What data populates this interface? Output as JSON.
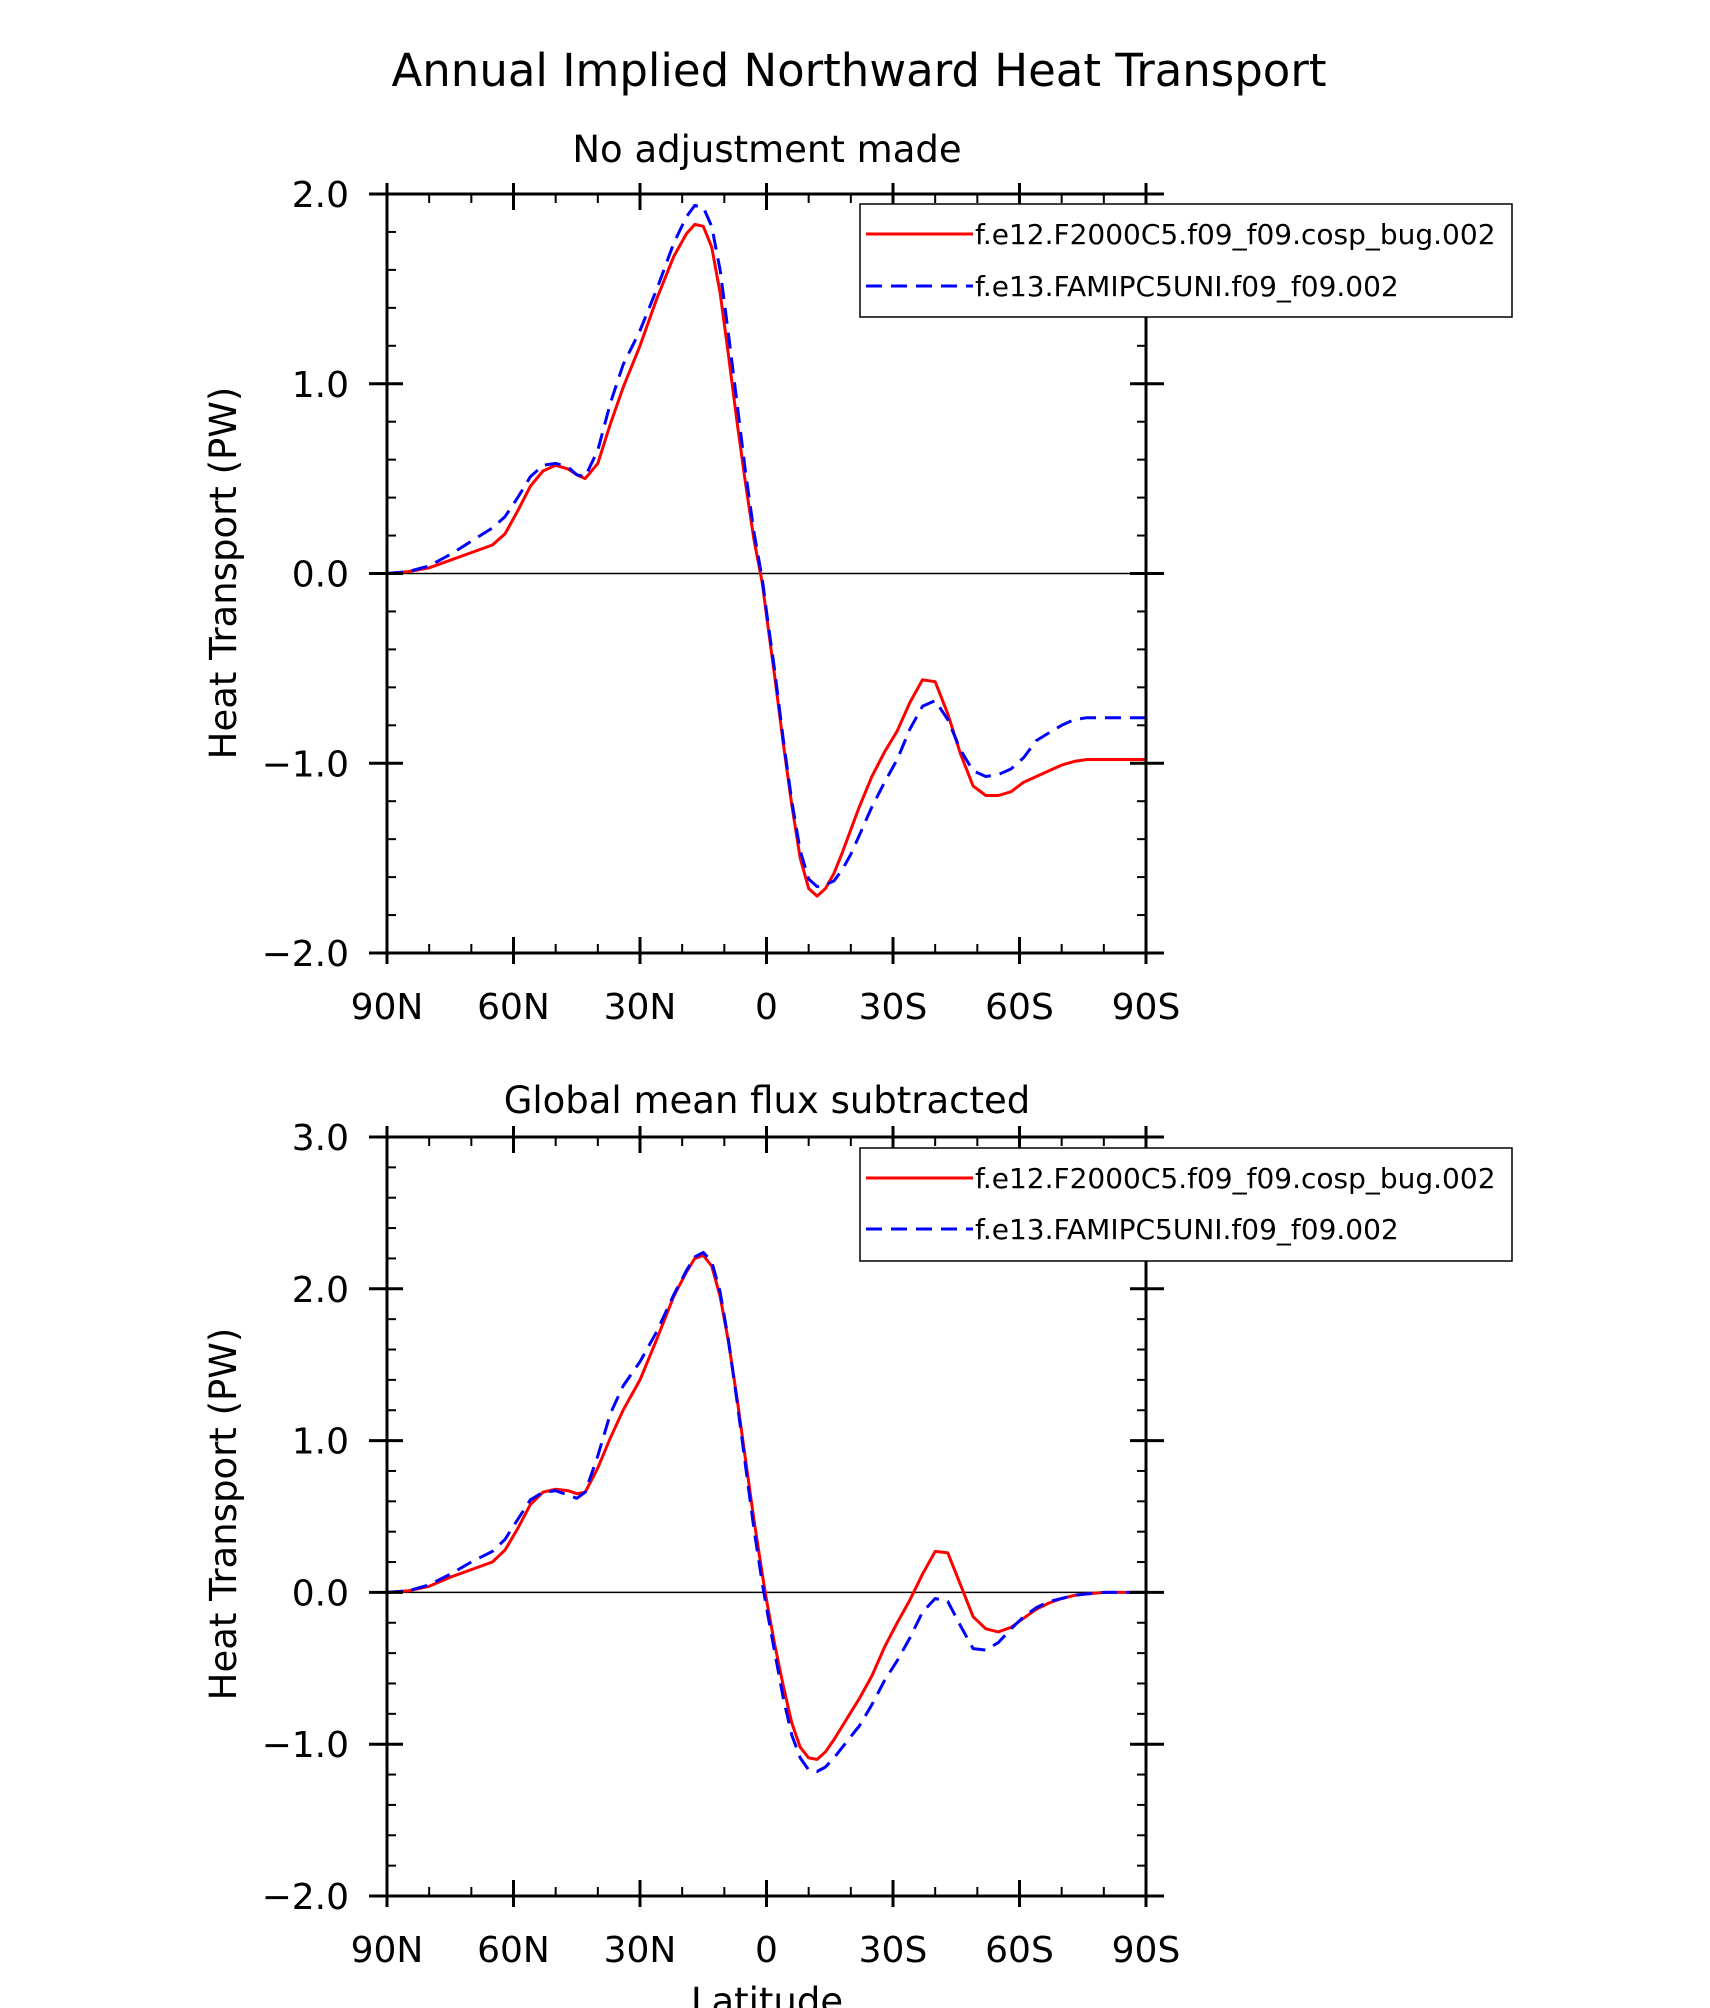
{
  "figure": {
    "title": "Annual Implied Northward Heat Transport",
    "xlabel": "Latitude"
  },
  "legend_entries": [
    "f.e12.F2000C5.f09_f09.cosp_bug.002",
    "f.e13.FAMIPC5UNI.f09_f09.002"
  ],
  "colors": {
    "series1": "#ff0000",
    "series2": "#0000ff",
    "axis": "#000000"
  },
  "chart_data": [
    {
      "type": "line",
      "title": "No adjustment made",
      "xlabel": "",
      "ylabel": "Heat Transport (PW)",
      "x_ticks": [
        {
          "v": 90,
          "label": "90N"
        },
        {
          "v": 60,
          "label": "60N"
        },
        {
          "v": 30,
          "label": "30N"
        },
        {
          "v": 0,
          "label": "0"
        },
        {
          "v": -30,
          "label": "30S"
        },
        {
          "v": -60,
          "label": "60S"
        },
        {
          "v": -90,
          "label": "90S"
        }
      ],
      "y_ticks": [
        {
          "v": 2,
          "label": "2.0"
        },
        {
          "v": 1,
          "label": "1.0"
        },
        {
          "v": 0,
          "label": "0.0"
        },
        {
          "v": -1,
          "label": "−1.0"
        },
        {
          "v": -2,
          "label": "−2.0"
        }
      ],
      "xlim": [
        90,
        -90
      ],
      "ylim": [
        -2.0,
        2.0
      ],
      "zero_line": true,
      "legend": "top-right",
      "series": [
        {
          "name": "f.e12.F2000C5.f09_f09.cosp_bug.002",
          "color": "#ff0000",
          "dash": "solid",
          "x": [
            90,
            85,
            80,
            75,
            70,
            65,
            62,
            59,
            56,
            53,
            50,
            47,
            45,
            43,
            40,
            37,
            34,
            30,
            26,
            22,
            19,
            17,
            15,
            13,
            11,
            9,
            7,
            5,
            3,
            1,
            0,
            -2,
            -4,
            -6,
            -8,
            -10,
            -12,
            -14,
            -16,
            -18,
            -20,
            -22,
            -25,
            -28,
            -31,
            -34,
            -37,
            -40,
            -43,
            -46,
            -49,
            -52,
            -55,
            -58,
            -61,
            -64,
            -67,
            -70,
            -73,
            -76,
            -80,
            -85,
            -90
          ],
          "y": [
            0,
            0.01,
            0.03,
            0.07,
            0.11,
            0.15,
            0.21,
            0.33,
            0.46,
            0.54,
            0.57,
            0.55,
            0.52,
            0.5,
            0.58,
            0.79,
            0.98,
            1.2,
            1.45,
            1.67,
            1.79,
            1.84,
            1.83,
            1.72,
            1.48,
            1.15,
            0.8,
            0.48,
            0.18,
            -0.05,
            -0.22,
            -0.55,
            -0.9,
            -1.22,
            -1.5,
            -1.66,
            -1.7,
            -1.66,
            -1.58,
            -1.47,
            -1.35,
            -1.23,
            -1.07,
            -0.94,
            -0.83,
            -0.68,
            -0.56,
            -0.57,
            -0.74,
            -0.95,
            -1.12,
            -1.17,
            -1.17,
            -1.15,
            -1.1,
            -1.07,
            -1.04,
            -1.01,
            -0.99,
            -0.98,
            -0.98,
            -0.98,
            -0.98
          ]
        },
        {
          "name": "f.e13.FAMIPC5UNI.f09_f09.002",
          "color": "#0000ff",
          "dash": "dashed",
          "x": [
            90,
            85,
            80,
            75,
            70,
            65,
            62,
            59,
            56,
            53,
            50,
            47,
            45,
            43,
            40,
            37,
            34,
            30,
            26,
            22,
            19,
            17,
            15,
            13,
            11,
            9,
            7,
            5,
            3,
            1,
            0,
            -2,
            -4,
            -6,
            -8,
            -10,
            -12,
            -14,
            -16,
            -18,
            -20,
            -22,
            -25,
            -28,
            -31,
            -34,
            -37,
            -40,
            -43,
            -46,
            -49,
            -52,
            -55,
            -58,
            -61,
            -64,
            -67,
            -70,
            -73,
            -76,
            -80,
            -85,
            -90
          ],
          "y": [
            0,
            0.01,
            0.04,
            0.1,
            0.17,
            0.24,
            0.3,
            0.4,
            0.51,
            0.57,
            0.58,
            0.56,
            0.52,
            0.51,
            0.65,
            0.9,
            1.1,
            1.28,
            1.5,
            1.74,
            1.88,
            1.94,
            1.93,
            1.83,
            1.6,
            1.26,
            0.9,
            0.54,
            0.22,
            -0.03,
            -0.2,
            -0.52,
            -0.88,
            -1.2,
            -1.46,
            -1.61,
            -1.65,
            -1.64,
            -1.62,
            -1.56,
            -1.48,
            -1.38,
            -1.23,
            -1.1,
            -0.98,
            -0.82,
            -0.7,
            -0.67,
            -0.77,
            -0.93,
            -1.04,
            -1.07,
            -1.06,
            -1.03,
            -0.97,
            -0.88,
            -0.84,
            -0.8,
            -0.77,
            -0.76,
            -0.76,
            -0.76,
            -0.76
          ]
        }
      ]
    },
    {
      "type": "line",
      "title": "Global mean flux subtracted",
      "xlabel": "Latitude",
      "ylabel": "Heat Transport (PW)",
      "x_ticks": [
        {
          "v": 90,
          "label": "90N"
        },
        {
          "v": 60,
          "label": "60N"
        },
        {
          "v": 30,
          "label": "30N"
        },
        {
          "v": 0,
          "label": "0"
        },
        {
          "v": -30,
          "label": "30S"
        },
        {
          "v": -60,
          "label": "60S"
        },
        {
          "v": -90,
          "label": "90S"
        }
      ],
      "y_ticks": [
        {
          "v": 3,
          "label": "3.0"
        },
        {
          "v": 2,
          "label": "2.0"
        },
        {
          "v": 1,
          "label": "1.0"
        },
        {
          "v": 0,
          "label": "0.0"
        },
        {
          "v": -1,
          "label": "−1.0"
        },
        {
          "v": -2,
          "label": "−2.0"
        }
      ],
      "xlim": [
        90,
        -90
      ],
      "ylim": [
        -2.0,
        3.0
      ],
      "zero_line": true,
      "legend": "top-right",
      "series": [
        {
          "name": "f.e12.F2000C5.f09_f09.cosp_bug.002",
          "color": "#ff0000",
          "dash": "solid",
          "x": [
            90,
            85,
            80,
            75,
            70,
            65,
            62,
            59,
            56,
            53,
            50,
            47,
            45,
            43,
            40,
            37,
            34,
            30,
            26,
            22,
            19,
            17,
            15,
            13,
            11,
            9,
            7,
            5,
            3,
            1,
            0,
            -2,
            -4,
            -6,
            -8,
            -10,
            -12,
            -14,
            -16,
            -18,
            -20,
            -22,
            -25,
            -28,
            -31,
            -34,
            -37,
            -40,
            -43,
            -46,
            -49,
            -52,
            -55,
            -58,
            -61,
            -64,
            -67,
            -70,
            -73,
            -76,
            -80,
            -85,
            -90
          ],
          "y": [
            0,
            0.01,
            0.04,
            0.1,
            0.15,
            0.2,
            0.28,
            0.42,
            0.58,
            0.66,
            0.68,
            0.67,
            0.65,
            0.66,
            0.82,
            1.02,
            1.2,
            1.4,
            1.67,
            1.95,
            2.11,
            2.2,
            2.22,
            2.15,
            1.95,
            1.65,
            1.28,
            0.88,
            0.48,
            0.12,
            -0.05,
            -0.35,
            -0.62,
            -0.86,
            -1.02,
            -1.09,
            -1.1,
            -1.05,
            -0.97,
            -0.88,
            -0.79,
            -0.7,
            -0.55,
            -0.36,
            -0.2,
            -0.05,
            0.12,
            0.27,
            0.26,
            0.05,
            -0.16,
            -0.24,
            -0.26,
            -0.23,
            -0.17,
            -0.11,
            -0.07,
            -0.04,
            -0.02,
            -0.01,
            0,
            0,
            0
          ]
        },
        {
          "name": "f.e13.FAMIPC5UNI.f09_f09.002",
          "color": "#0000ff",
          "dash": "dashed",
          "x": [
            90,
            85,
            80,
            75,
            70,
            65,
            62,
            59,
            56,
            53,
            50,
            47,
            45,
            43,
            40,
            37,
            34,
            30,
            26,
            22,
            19,
            17,
            15,
            13,
            11,
            9,
            7,
            5,
            3,
            1,
            0,
            -2,
            -4,
            -6,
            -8,
            -10,
            -12,
            -14,
            -16,
            -18,
            -20,
            -22,
            -25,
            -28,
            -31,
            -34,
            -37,
            -40,
            -43,
            -46,
            -49,
            -52,
            -55,
            -58,
            -61,
            -64,
            -67,
            -70,
            -73,
            -76,
            -80,
            -85,
            -90
          ],
          "y": [
            0,
            0.01,
            0.05,
            0.12,
            0.2,
            0.27,
            0.35,
            0.48,
            0.61,
            0.66,
            0.67,
            0.64,
            0.62,
            0.66,
            0.9,
            1.18,
            1.36,
            1.52,
            1.72,
            1.96,
            2.12,
            2.21,
            2.24,
            2.18,
            1.98,
            1.66,
            1.26,
            0.84,
            0.42,
            0.06,
            -0.1,
            -0.4,
            -0.7,
            -0.94,
            -1.09,
            -1.17,
            -1.18,
            -1.15,
            -1.09,
            -1.02,
            -0.95,
            -0.88,
            -0.74,
            -0.58,
            -0.45,
            -0.3,
            -0.13,
            -0.04,
            -0.06,
            -0.22,
            -0.37,
            -0.38,
            -0.33,
            -0.24,
            -0.16,
            -0.1,
            -0.06,
            -0.04,
            -0.02,
            -0.01,
            0,
            0,
            0
          ]
        }
      ]
    }
  ]
}
